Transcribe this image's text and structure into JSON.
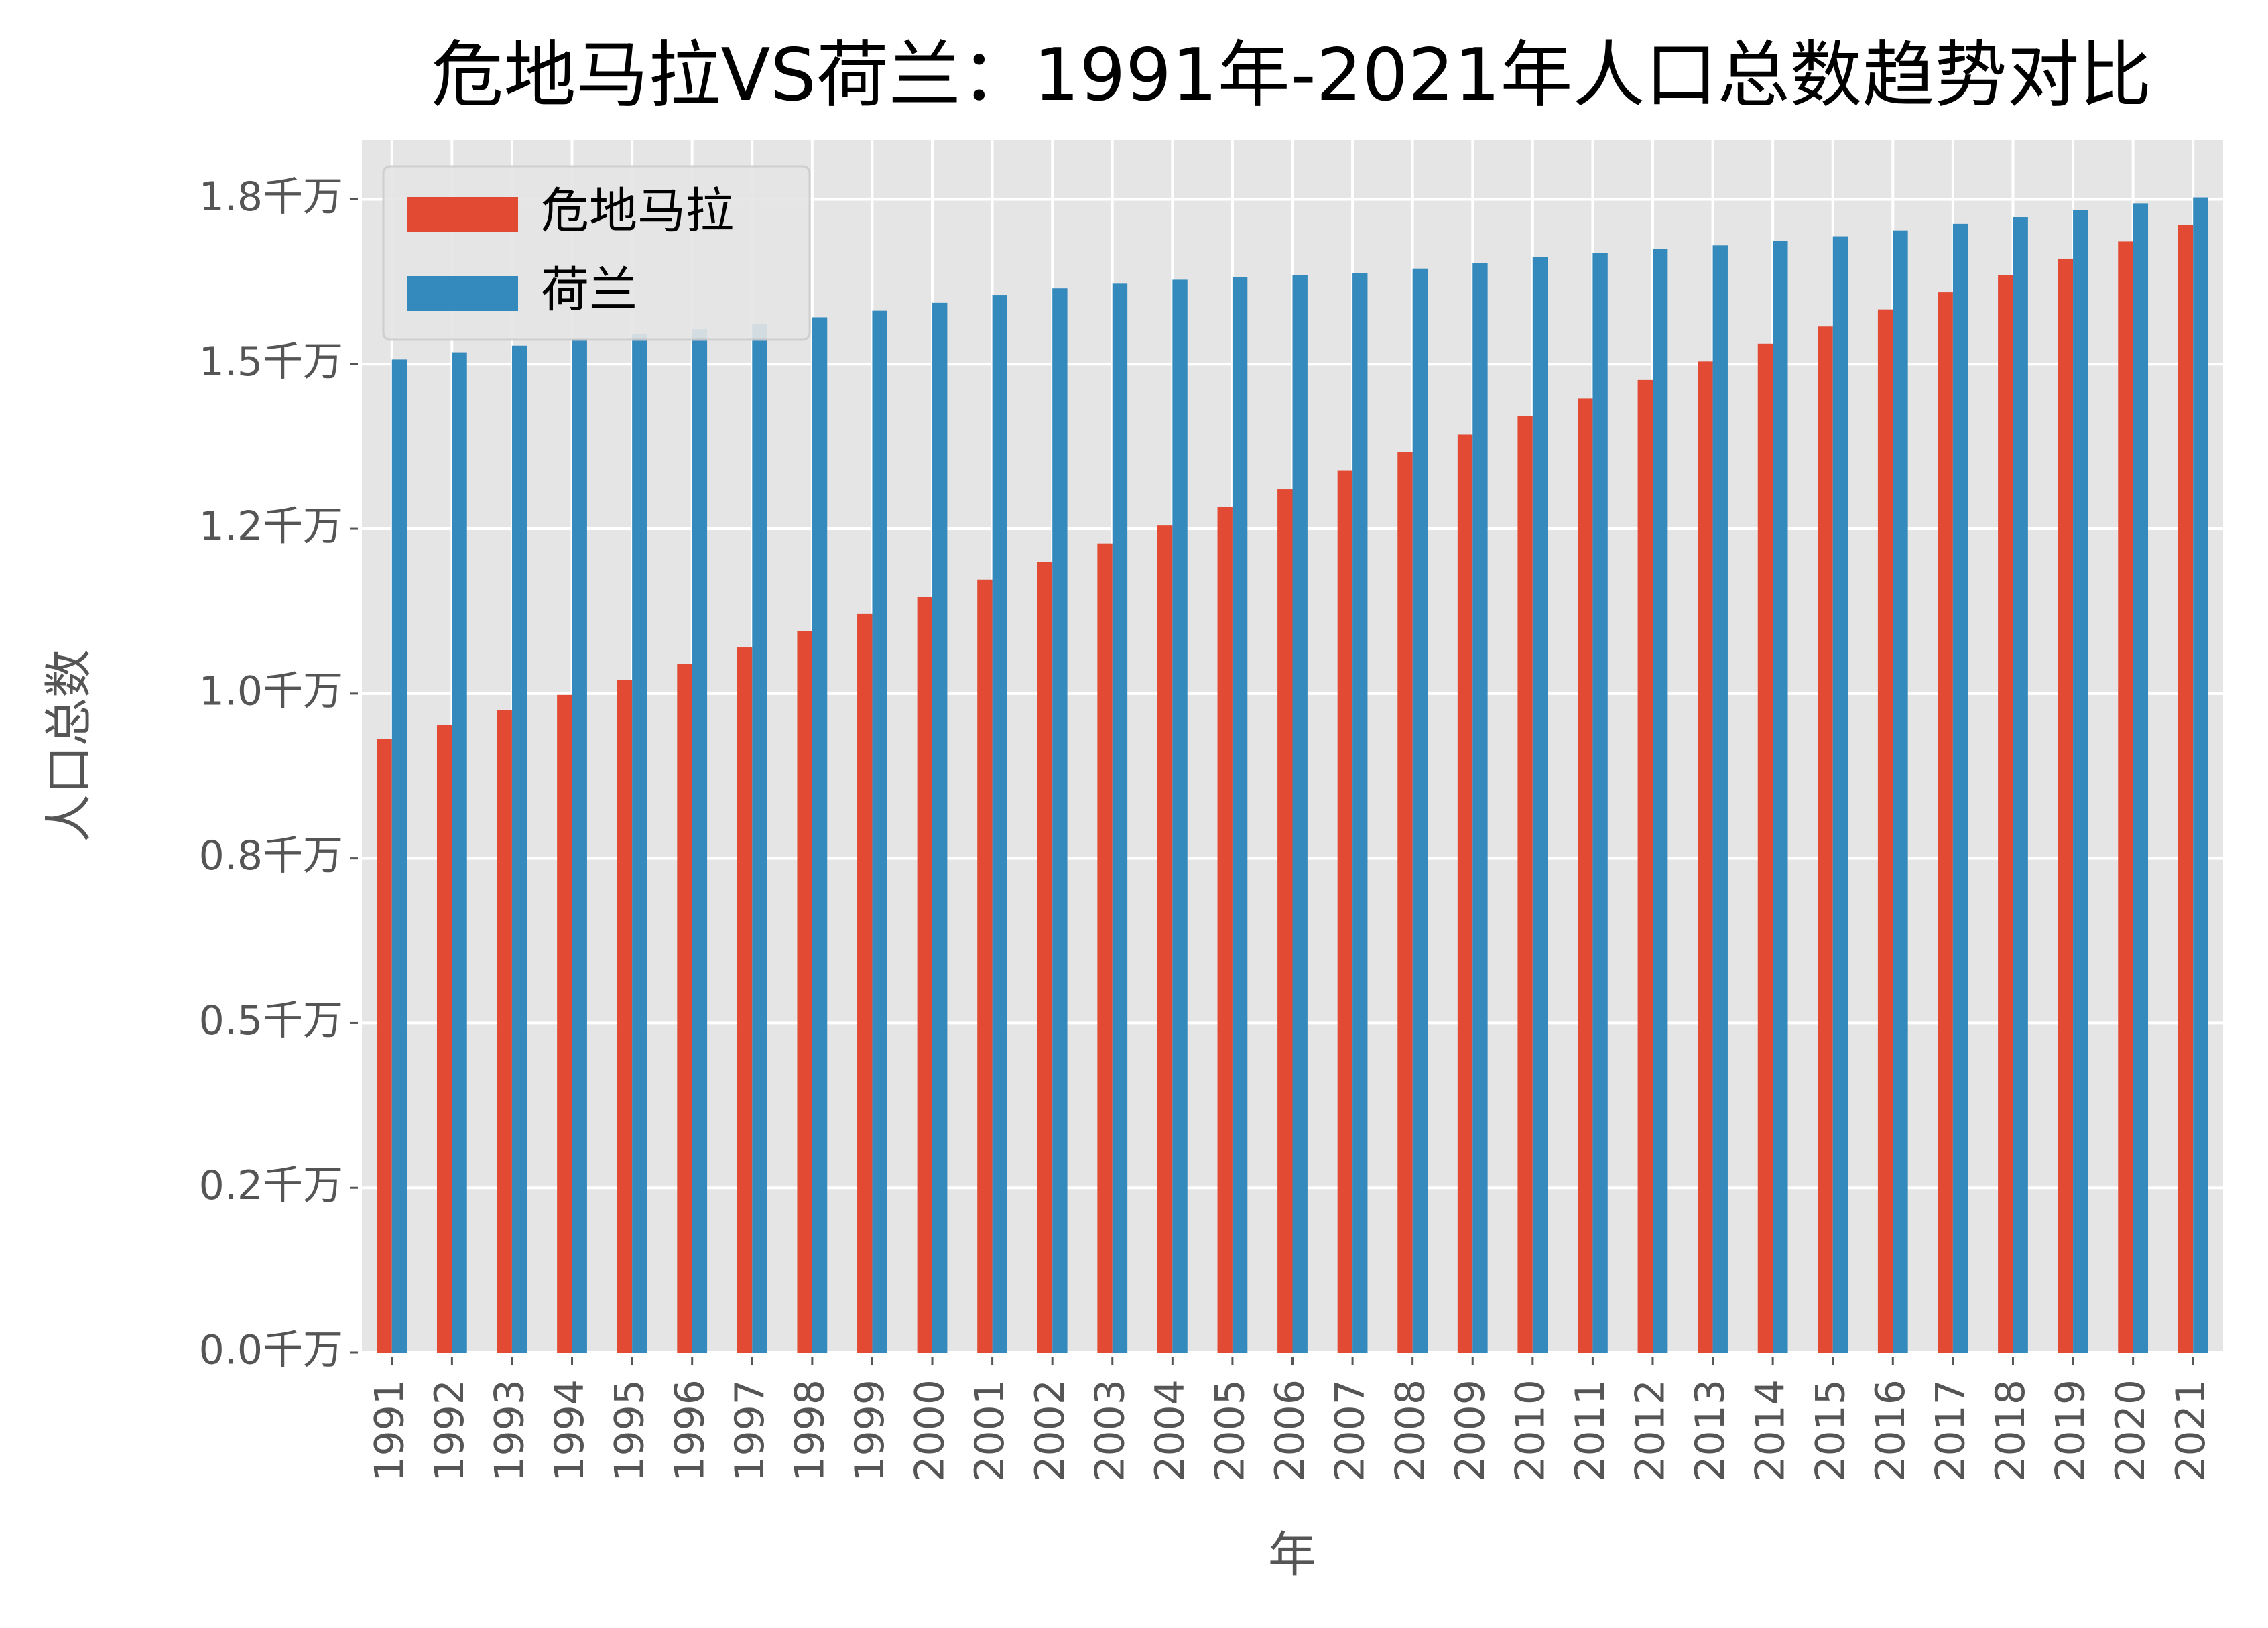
{
  "chart_data": {
    "type": "bar",
    "title": "危地马拉VS荷兰：1991年-2021年人口总数趋势对比",
    "x_label": "年",
    "y_label": "人口总数",
    "categories": [
      "1991",
      "1992",
      "1993",
      "1994",
      "1995",
      "1996",
      "1997",
      "1998",
      "1999",
      "2000",
      "2001",
      "2002",
      "2003",
      "2004",
      "2005",
      "2006",
      "2007",
      "2008",
      "2009",
      "2010",
      "2011",
      "2012",
      "2013",
      "2014",
      "2015",
      "2016",
      "2017",
      "2018",
      "2019",
      "2020",
      "2021"
    ],
    "series": [
      {
        "name": "危地马拉",
        "color": "#e24a33",
        "values": [
          9310000,
          9530000,
          9750000,
          9980000,
          10210000,
          10450000,
          10700000,
          10950000,
          11210000,
          11470000,
          11730000,
          12000000,
          12280000,
          12550000,
          12830000,
          13100000,
          13390000,
          13660000,
          13930000,
          14210000,
          14480000,
          14760000,
          15040000,
          15310000,
          15570000,
          15830000,
          16090000,
          16350000,
          16600000,
          16860000,
          17110000
        ]
      },
      {
        "name": "荷兰",
        "color": "#348abd",
        "values": [
          15070000,
          15180000,
          15280000,
          15380000,
          15460000,
          15530000,
          15610000,
          15710000,
          15810000,
          15930000,
          16050000,
          16150000,
          16230000,
          16280000,
          16320000,
          16350000,
          16380000,
          16450000,
          16530000,
          16620000,
          16690000,
          16750000,
          16800000,
          16870000,
          16940000,
          17030000,
          17130000,
          17230000,
          17340000,
          17440000,
          17530000
        ]
      }
    ],
    "ylim": [
      0,
      18400000
    ],
    "yticks": [
      {
        "value": 0,
        "label": "0.0千万"
      },
      {
        "value": 2500000,
        "label": "0.2千万"
      },
      {
        "value": 5000000,
        "label": "0.5千万"
      },
      {
        "value": 7500000,
        "label": "0.8千万"
      },
      {
        "value": 10000000,
        "label": "1.0千万"
      },
      {
        "value": 12500000,
        "label": "1.2千万"
      },
      {
        "value": 15000000,
        "label": "1.5千万"
      },
      {
        "value": 17500000,
        "label": "1.8千万"
      }
    ],
    "grid": true,
    "legend": "upper left"
  }
}
